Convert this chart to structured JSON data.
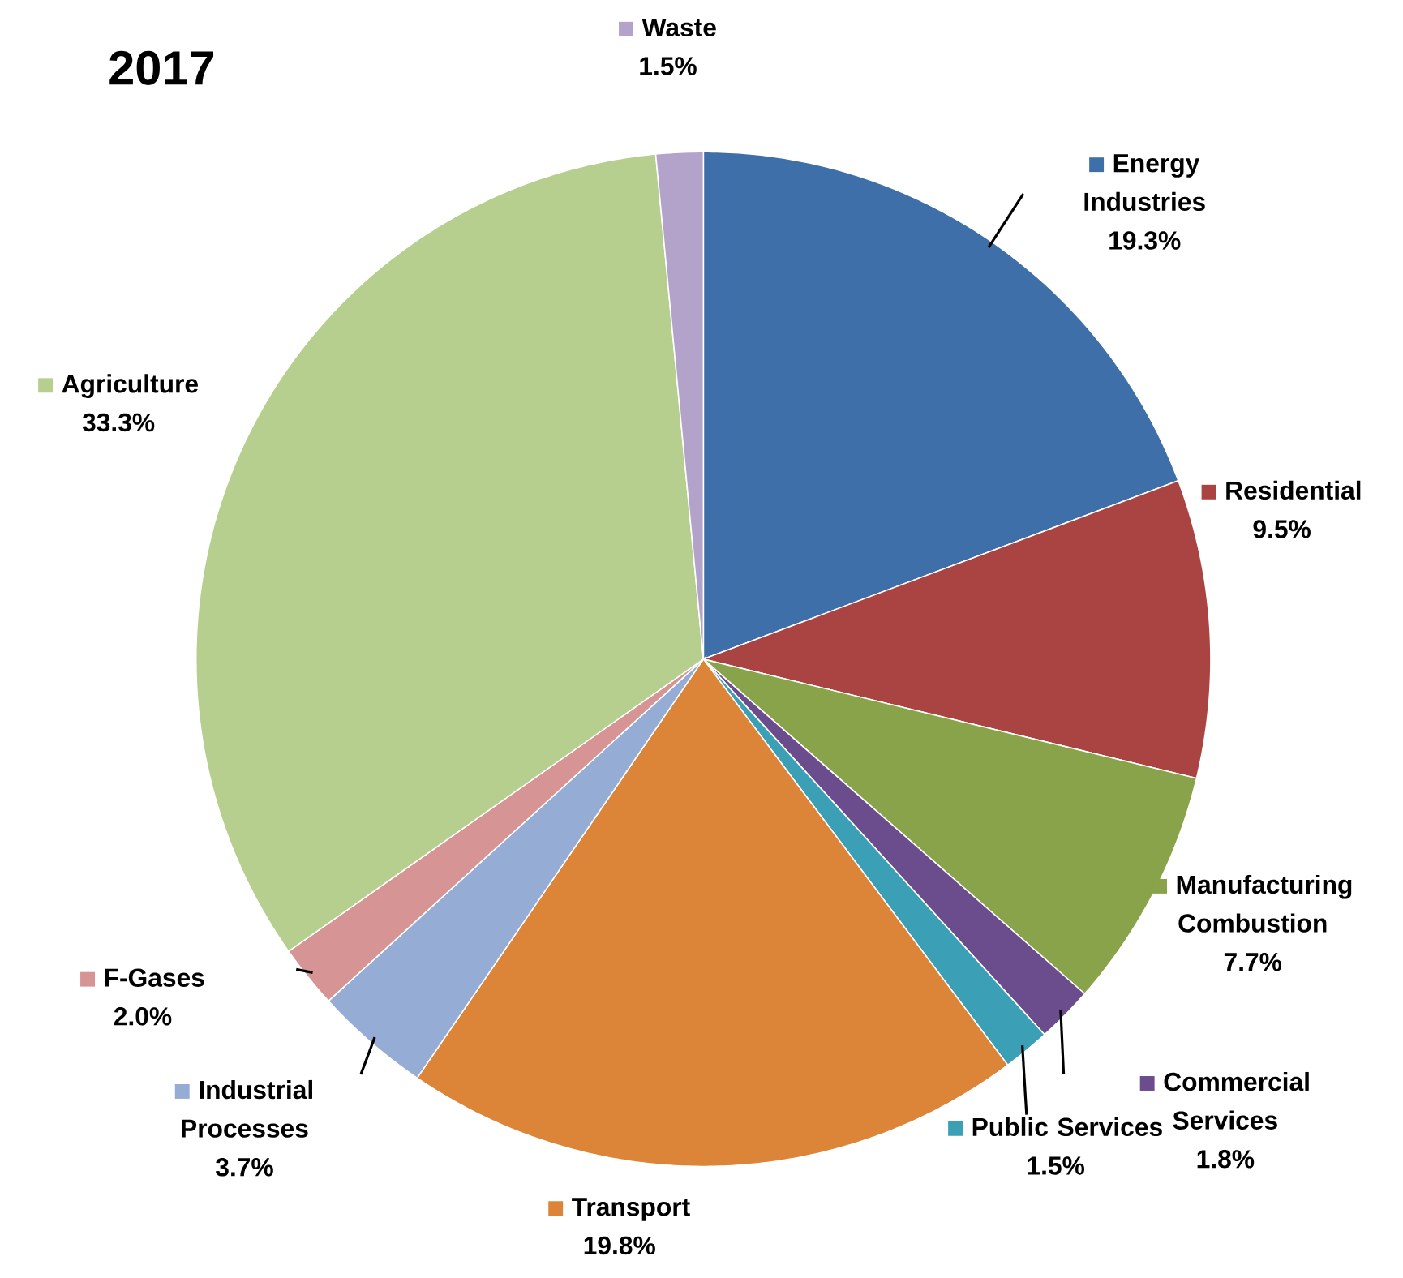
{
  "chart_data": {
    "type": "pie",
    "title": "2017",
    "legend": "right",
    "categories": [
      "Energy Industries",
      "Residential",
      "Manufacturing Combustion",
      "Commercial Services",
      "Public Services",
      "Transport",
      "Industrial Processes",
      "F-Gases",
      "Agriculture",
      "Waste"
    ],
    "values": [
      19.3,
      9.5,
      7.7,
      1.8,
      1.5,
      19.8,
      3.7,
      2.0,
      33.3,
      1.5
    ],
    "value_labels": [
      "19.3%",
      "9.5%",
      "7.7%",
      "1.8%",
      "1.5%",
      "19.8%",
      "3.7%",
      "2.0%",
      "33.3%",
      "1.5%"
    ],
    "colors": [
      "#3f6fa8",
      "#a94442",
      "#88a34a",
      "#6b4c8c",
      "#3ba0b5",
      "#dc8438",
      "#95acd4",
      "#d69594",
      "#b6cf8e",
      "#b3a2c9"
    ]
  }
}
